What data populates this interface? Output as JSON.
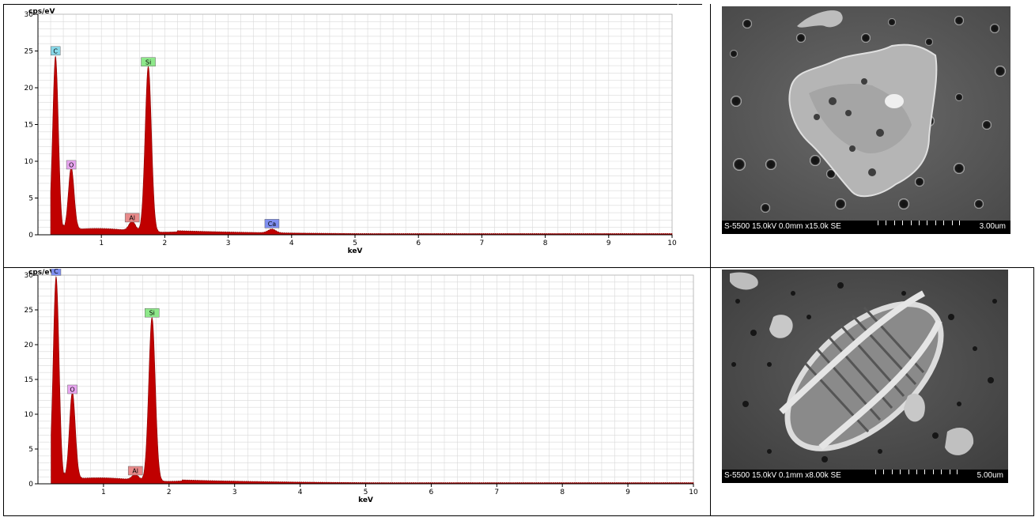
{
  "chart_data": [
    {
      "type": "line",
      "ylabel": "cps/eV",
      "xlabel": "keV",
      "xlim": [
        0,
        10
      ],
      "ylim": [
        0,
        30
      ],
      "xticks": [
        1,
        2,
        3,
        4,
        5,
        6,
        7,
        8,
        9,
        10
      ],
      "yticks": [
        0,
        5,
        10,
        15,
        20,
        25,
        30
      ],
      "grid": true,
      "fill_color": "#c00000",
      "peaks": [
        {
          "element": "C",
          "x": 0.277,
          "y": 24.0,
          "width": 0.045,
          "label_color": "#88d8e8"
        },
        {
          "element": "O",
          "x": 0.525,
          "y": 8.5,
          "width": 0.045,
          "label_color": "#e8a6f0"
        },
        {
          "element": "Al",
          "x": 1.486,
          "y": 1.3,
          "width": 0.05,
          "label_color": "#e88a8a"
        },
        {
          "element": "Si",
          "x": 1.74,
          "y": 22.5,
          "width": 0.05,
          "label_color": "#8ee88a"
        },
        {
          "element": "Ca",
          "x": 3.69,
          "y": 0.5,
          "width": 0.06,
          "label_color": "#7f8ff0"
        }
      ]
    },
    {
      "type": "line",
      "ylabel": "cps/eV",
      "xlabel": "keV",
      "xlim": [
        0,
        10
      ],
      "ylim": [
        0,
        30
      ],
      "xticks": [
        1,
        2,
        3,
        4,
        5,
        6,
        7,
        8,
        9,
        10
      ],
      "yticks": [
        0,
        5,
        10,
        15,
        20,
        25,
        30
      ],
      "grid": true,
      "fill_color": "#c00000",
      "peaks": [
        {
          "element": "C",
          "x": 0.277,
          "y": 29.5,
          "width": 0.045,
          "label_color": "#7f8ff0"
        },
        {
          "element": "O",
          "x": 0.525,
          "y": 12.5,
          "width": 0.045,
          "label_color": "#e8a6f0"
        },
        {
          "element": "Al",
          "x": 1.486,
          "y": 0.8,
          "width": 0.05,
          "label_color": "#e88a8a"
        },
        {
          "element": "Si",
          "x": 1.74,
          "y": 23.5,
          "width": 0.05,
          "label_color": "#8ee88a"
        }
      ]
    }
  ],
  "sem_images": [
    {
      "info": "S-5500 15.0kV 0.0mm x15.0k SE",
      "scale": "3.00um"
    },
    {
      "info": "S-5500 15.0kV 0.1mm x8.00k SE",
      "scale": "5.00um"
    }
  ]
}
